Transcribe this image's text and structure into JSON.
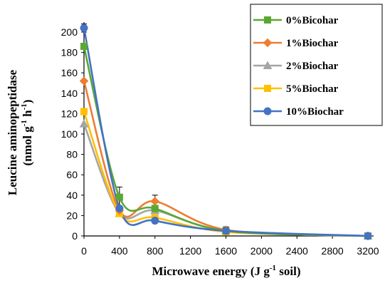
{
  "chart_data": {
    "type": "line",
    "xlabel_main": "Microwave energy (J g",
    "xlabel_sup": "-1",
    "xlabel_tail": " soil)",
    "ylabel_line1": "Leucine aminopeptidase",
    "ylabel_line2_main": "(nmol g",
    "ylabel_line2_sup1": "-1",
    "ylabel_line2_mid": " h",
    "ylabel_line2_sup2": "-1",
    "ylabel_line2_tail": ")",
    "x_ticks": [
      "0",
      "400",
      "800",
      "1200",
      "1600",
      "2000",
      "2400",
      "2800",
      "3200"
    ],
    "y_ticks": [
      "0",
      "20",
      "40",
      "60",
      "80",
      "100",
      "120",
      "140",
      "160",
      "180",
      "200"
    ],
    "xlim": [
      0,
      3200
    ],
    "ylim": [
      0,
      200
    ],
    "x": [
      0,
      400,
      800,
      1600,
      3200
    ],
    "series": [
      {
        "name": "0%Bicohar",
        "values": [
          186,
          38,
          27,
          5,
          0
        ],
        "color": "#5aa832",
        "marker": "square",
        "errors": [
          0,
          10,
          0,
          0,
          0
        ]
      },
      {
        "name": "1%Biochar",
        "values": [
          152,
          25,
          34,
          6,
          0
        ],
        "color": "#ed7d31",
        "marker": "diamond",
        "errors": [
          0,
          0,
          6,
          0,
          0
        ]
      },
      {
        "name": "2%Biochar",
        "values": [
          110,
          22,
          25,
          5,
          0
        ],
        "color": "#a5a5a5",
        "marker": "triangle",
        "errors": [
          0,
          0,
          0,
          0,
          0
        ]
      },
      {
        "name": "5%Biochar",
        "values": [
          122,
          22,
          18,
          4,
          0
        ],
        "color": "#ffc000",
        "marker": "square",
        "errors": [
          0,
          0,
          0,
          0,
          0
        ]
      },
      {
        "name": "10%Biochar",
        "values": [
          204,
          27,
          15,
          5,
          0
        ],
        "color": "#4472c4",
        "marker": "circle",
        "errors": [
          4,
          8,
          0,
          4,
          0
        ]
      }
    ]
  }
}
